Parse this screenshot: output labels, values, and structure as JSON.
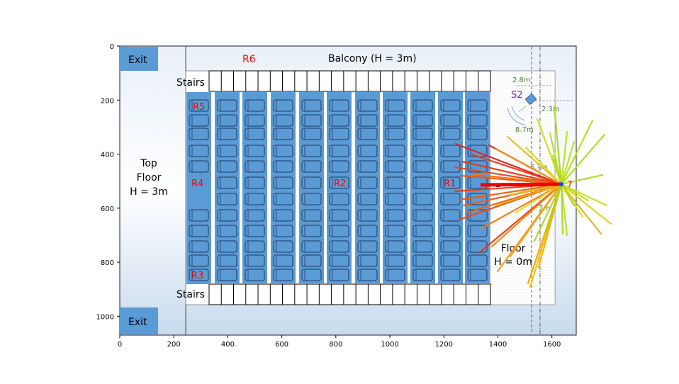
{
  "labels": {
    "exit_top": "Exit",
    "exit_bottom": "Exit",
    "r6": "R6",
    "balcony": "Balcony (H = 3m)",
    "stairs_top": "Stairs",
    "stairs_bottom": "Stairs",
    "r5": "R5",
    "r4": "R4",
    "r3": "R3",
    "r2": "R2",
    "r1": "R1",
    "top_floor_1": "Top",
    "top_floor_2": "Floor",
    "top_floor_3": "H = 3m",
    "floor_1": "Floor",
    "floor_2": "H = 0m",
    "s2": "S2",
    "dist_28": "2.8m",
    "dist_23": "2.3m",
    "dist_87": "8.7m",
    "dist_5p": "5.?m",
    "dist_7m": "7m",
    "source_num": "7",
    "partial_text": "n"
  },
  "axes": {
    "x_ticks": [
      "0",
      "200",
      "400",
      "600",
      "800",
      "1000",
      "1200",
      "1400",
      "1600"
    ],
    "y_ticks": [
      "0",
      "200",
      "400",
      "600",
      "800",
      "1000"
    ]
  },
  "colors": {
    "seat_column": "#5b9bd5",
    "seat_outline": "#1f3864",
    "exit_box": "#5b9bd5",
    "floor_bg": "#dbe7f4",
    "red_label": "#ff0000",
    "green_label": "#548235",
    "purple_label": "#7030a0"
  }
}
